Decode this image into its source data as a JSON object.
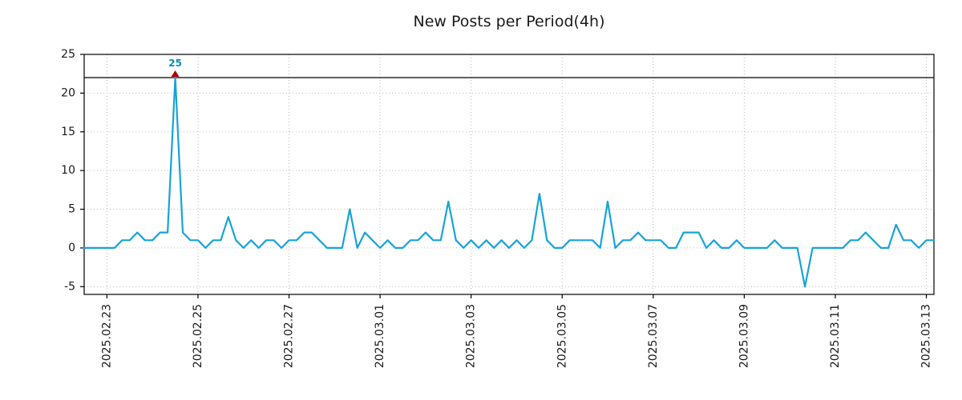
{
  "chart": {
    "title": "New Posts per Period(4h)",
    "threshold_value": 22,
    "display_clip": 22,
    "annotation": {
      "text": "25",
      "index": 12,
      "value": 25
    },
    "colors": {
      "line": "#17a3d8",
      "annotation_text": "#0b8db8",
      "marker": "#aa0000",
      "grid": "#b8b8b8",
      "axis": "#000000",
      "threshold": "#000000"
    }
  },
  "chart_data": {
    "type": "line",
    "title": "New Posts per Period(4h)",
    "series_name": "new-posts-per-4h",
    "interval": "4h",
    "xlabel": "",
    "ylabel": "",
    "grid": true,
    "legend": false,
    "ylim": [
      -6,
      25
    ],
    "y_ticks": [
      -5,
      0,
      5,
      10,
      15,
      20,
      25
    ],
    "x_ticks": [
      {
        "index": 3,
        "label": "2025.02.23"
      },
      {
        "index": 15,
        "label": "2025.02.25"
      },
      {
        "index": 27,
        "label": "2025.02.27"
      },
      {
        "index": 39,
        "label": "2025.03.01"
      },
      {
        "index": 51,
        "label": "2025.03.03"
      },
      {
        "index": 63,
        "label": "2025.03.05"
      },
      {
        "index": 75,
        "label": "2025.03.07"
      },
      {
        "index": 87,
        "label": "2025.03.09"
      },
      {
        "index": 99,
        "label": "2025.03.11"
      },
      {
        "index": 111,
        "label": "2025.03.13"
      }
    ],
    "values": [
      0,
      0,
      0,
      0,
      0,
      1,
      1,
      2,
      1,
      1,
      2,
      2,
      25,
      2,
      1,
      1,
      0,
      1,
      1,
      4,
      1,
      0,
      1,
      0,
      1,
      1,
      0,
      1,
      1,
      2,
      2,
      1,
      0,
      0,
      0,
      5,
      0,
      2,
      1,
      0,
      1,
      0,
      0,
      1,
      1,
      2,
      1,
      1,
      6,
      1,
      0,
      1,
      0,
      1,
      0,
      1,
      0,
      1,
      0,
      1,
      7,
      1,
      0,
      0,
      1,
      1,
      1,
      1,
      0,
      6,
      0,
      1,
      1,
      2,
      1,
      1,
      1,
      0,
      0,
      2,
      2,
      2,
      0,
      1,
      0,
      0,
      1,
      0,
      0,
      0,
      0,
      1,
      0,
      0,
      0,
      -5,
      0,
      0,
      0,
      0,
      0,
      1,
      1,
      2,
      1,
      0,
      0,
      3,
      1,
      1,
      0,
      1,
      1
    ]
  }
}
